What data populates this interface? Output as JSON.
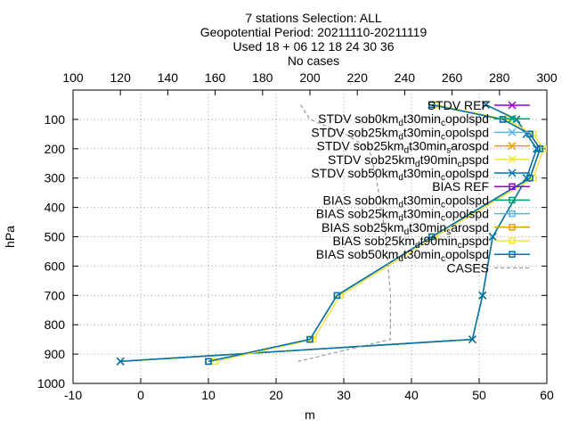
{
  "chart_data": {
    "type": "line",
    "title": [
      "7 stations Selection: ALL",
      "Geopotential  Period: 20211110-20211119",
      "Used 18 + 06 12 18 24 30 36",
      "No cases"
    ],
    "xlabel": "m",
    "ylabel": "hPa",
    "x_range": [
      -10,
      60
    ],
    "x_ticks": [
      "-10",
      "0",
      "10",
      "20",
      "30",
      "40",
      "50",
      "60"
    ],
    "x_tick_values": [
      -10,
      0,
      10,
      20,
      30,
      40,
      50,
      60
    ],
    "x2_range": [
      100,
      300
    ],
    "x2_ticks": [
      "100",
      "120",
      "140",
      "160",
      "180",
      "200",
      "220",
      "240",
      "260",
      "280",
      "300"
    ],
    "x2_tick_values": [
      100,
      120,
      140,
      160,
      180,
      200,
      220,
      240,
      260,
      280,
      300
    ],
    "y_range": [
      1000,
      0
    ],
    "y_ticks": [
      "100",
      "200",
      "300",
      "400",
      "500",
      "600",
      "700",
      "800",
      "900",
      "1000"
    ],
    "y_tick_values": [
      100,
      200,
      300,
      400,
      500,
      600,
      700,
      800,
      900,
      1000
    ],
    "grid": true,
    "legend_position": "top-right",
    "pressure_levels": [
      50,
      100,
      150,
      200,
      300,
      500,
      700,
      850,
      925
    ],
    "series": [
      {
        "name": "STDV REF",
        "legend": [
          "STDV REF"
        ],
        "color": "#9400d3",
        "marker": "x",
        "axis": "bottom",
        "values": [
          null,
          null,
          null,
          null,
          null,
          null,
          null,
          null,
          null
        ]
      },
      {
        "name": "STDV sob0kmdt30mincopolspd",
        "legend": [
          "STDV sob0km",
          "d",
          "t30min",
          "c",
          "opolspd"
        ],
        "color": "#009e73",
        "marker": "x",
        "axis": "bottom",
        "values": [
          51,
          55.5,
          57,
          58.5,
          57,
          52,
          50.5,
          49,
          -3
        ]
      },
      {
        "name": "STDV sob25kmdt30mincopolspd",
        "legend": [
          "STDV sob25km",
          "d",
          "t30min",
          "c",
          "opolspd"
        ],
        "color": "#56b4e9",
        "marker": "x",
        "axis": "bottom",
        "values": [
          51,
          55.5,
          57,
          58.5,
          57,
          52,
          50.5,
          49,
          -3
        ]
      },
      {
        "name": "STDV sob25kmdt30minsarospd",
        "legend": [
          "STDV sob25km",
          "d",
          "t30min",
          "s",
          "arospd"
        ],
        "color": "#e69f00",
        "marker": "x",
        "axis": "bottom",
        "values": [
          51,
          55.5,
          57,
          58.5,
          57,
          52,
          50.5,
          49,
          -3
        ]
      },
      {
        "name": "STDV sob25kmdt90mincpspd",
        "legend": [
          "STDV sob25km",
          "d",
          "t90min",
          "c",
          "pspd"
        ],
        "color": "#f0e442",
        "marker": "x",
        "axis": "bottom",
        "values": [
          51,
          55.5,
          57,
          58.5,
          57,
          52,
          50.5,
          49,
          -3
        ]
      },
      {
        "name": "STDV sob50kmdt30mincopolspd",
        "legend": [
          "STDV sob50km",
          "d",
          "t30min",
          "c",
          "opolspd"
        ],
        "color": "#0072b2",
        "marker": "x",
        "axis": "bottom",
        "values": [
          51,
          55.5,
          57,
          58.5,
          57,
          52,
          50.5,
          49,
          -3
        ]
      },
      {
        "name": "BIAS REF",
        "legend": [
          "BIAS REF"
        ],
        "color": "#9400d3",
        "marker": "square",
        "axis": "bottom",
        "values": [
          null,
          null,
          null,
          null,
          null,
          null,
          null,
          null,
          null
        ]
      },
      {
        "name": "BIAS sob0kmdt30mincopolspd",
        "legend": [
          "BIAS sob0km",
          "d",
          "t30min",
          "c",
          "opolspd"
        ],
        "color": "#009e73",
        "marker": "square",
        "axis": "bottom",
        "values": [
          43,
          53.5,
          57.5,
          59,
          57.5,
          43,
          29,
          25,
          10
        ]
      },
      {
        "name": "BIAS sob25kmdt30mincopolspd",
        "legend": [
          "BIAS sob25km",
          "d",
          "t30min",
          "c",
          "opolspd"
        ],
        "color": "#56b4e9",
        "marker": "square",
        "axis": "bottom",
        "values": [
          43,
          53.5,
          57.5,
          59,
          57.5,
          43,
          29,
          25,
          10
        ]
      },
      {
        "name": "BIAS sob25kmdt30minsarospd",
        "legend": [
          "BIAS sob25km",
          "d",
          "t30min",
          "s",
          "arospd"
        ],
        "color": "#e69f00",
        "marker": "square",
        "axis": "bottom",
        "values": [
          43,
          53.5,
          57.5,
          59,
          57.5,
          43,
          29,
          25,
          10
        ]
      },
      {
        "name": "BIAS sob25kmdt90mincpspd",
        "legend": [
          "BIAS sob25km",
          "d",
          "t90min",
          "c",
          "pspd"
        ],
        "color": "#f0e442",
        "marker": "square",
        "axis": "bottom",
        "values": [
          43.5,
          54,
          58,
          59.5,
          58,
          43.5,
          29.5,
          25.5,
          11
        ]
      },
      {
        "name": "BIAS sob50kmdt30mincopolspd",
        "legend": [
          "BIAS sob50km",
          "d",
          "t30min",
          "c",
          "opolspd"
        ],
        "color": "#0072b2",
        "marker": "square",
        "axis": "bottom",
        "values": [
          43,
          53.5,
          57.5,
          59,
          57.5,
          43,
          29,
          25,
          10
        ]
      },
      {
        "name": "CASES",
        "legend": [
          "CASES"
        ],
        "color": "#999999",
        "marker": "none",
        "dashed": true,
        "axis": "top",
        "values": [
          196,
          200,
          215,
          225,
          228,
          232,
          234,
          234,
          195
        ]
      }
    ]
  }
}
